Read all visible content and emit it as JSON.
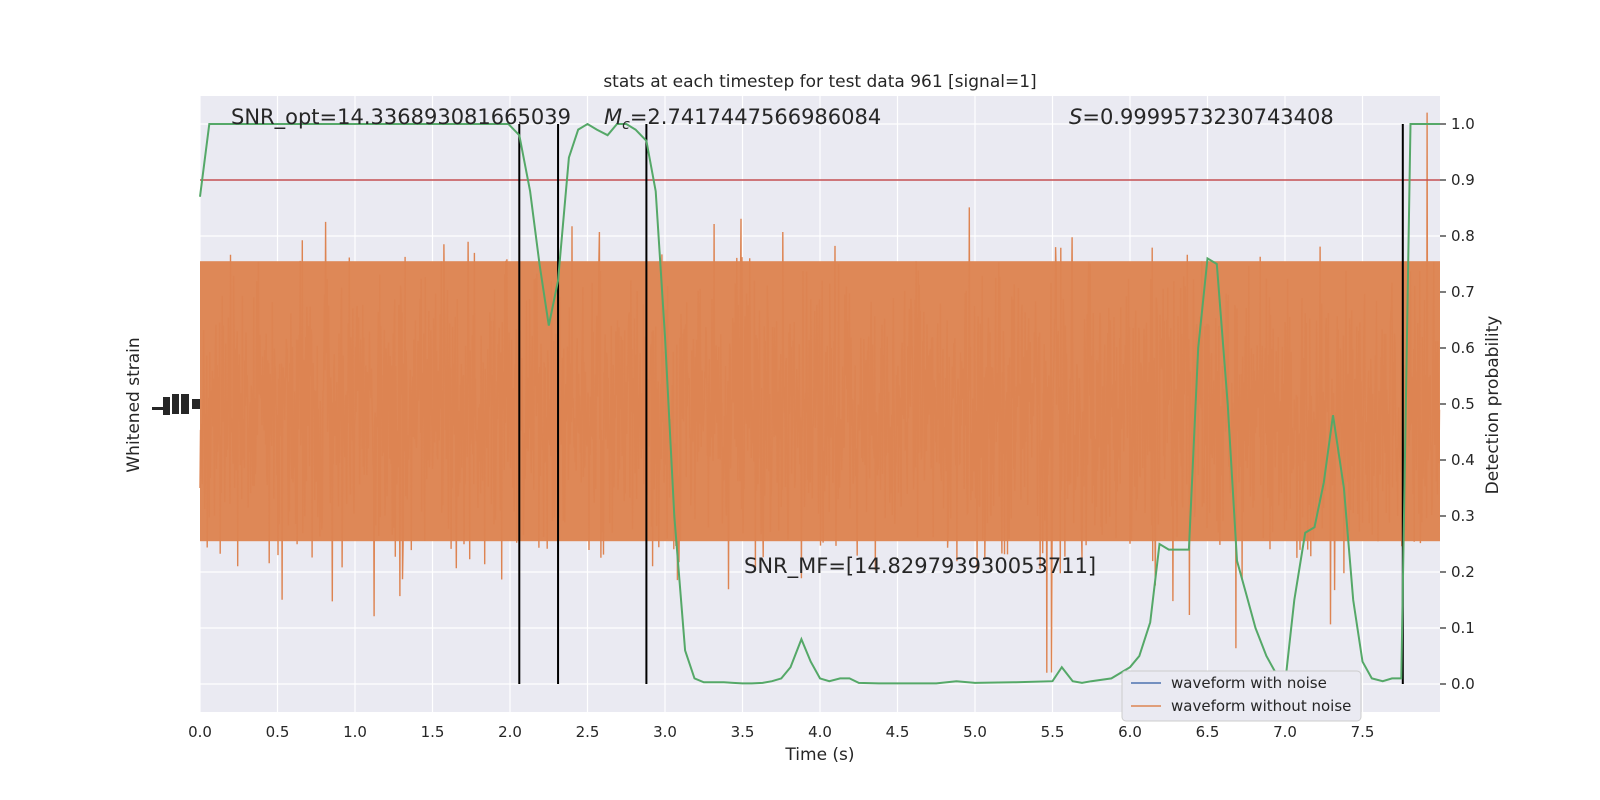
{
  "chart_data": {
    "type": "line",
    "title": "stats at each timestep for test data 961 [signal=1]",
    "xlabel": "Time (s)",
    "ylabel_left": "Whitened strain",
    "ylabel_right": "Detection probability",
    "xlim": [
      0,
      8
    ],
    "ylim_right": [
      -0.05,
      1.05
    ],
    "x_ticks": [
      0.0,
      0.5,
      1.0,
      1.5,
      2.0,
      2.5,
      3.0,
      3.5,
      4.0,
      4.5,
      5.0,
      5.5,
      6.0,
      6.5,
      7.0,
      7.5
    ],
    "x_tick_labels": [
      "0.0",
      "0.5",
      "1.0",
      "1.5",
      "2.0",
      "2.5",
      "3.0",
      "3.5",
      "4.0",
      "4.5",
      "5.0",
      "5.5",
      "6.0",
      "6.5",
      "7.0",
      "7.5"
    ],
    "y_ticks_right": [
      0.0,
      0.1,
      0.2,
      0.3,
      0.4,
      0.5,
      0.6,
      0.7,
      0.8,
      0.9,
      1.0
    ],
    "y_tick_labels_right": [
      "0.0",
      "0.1",
      "0.2",
      "0.3",
      "0.4",
      "0.5",
      "0.6",
      "0.7",
      "0.8",
      "0.9",
      "1.0"
    ],
    "grid": true,
    "legend_position": "lower-right",
    "annotations": {
      "snr_opt": "SNR_opt=14.336893081665039",
      "mc_symbol": "M",
      "mc_sub": "c",
      "mc_value": "=2.7417447566986084",
      "s_symbol": "S",
      "s_value": "=0.9999573230743408",
      "snr_mf": "SNR_MF=[14.829793930053711]"
    },
    "threshold": 0.9,
    "vertical_lines_x": [
      2.06,
      2.31,
      2.88,
      7.76
    ],
    "series": [
      {
        "name": "waveform with noise",
        "color": "#4c72b0",
        "kind": "strain",
        "values": []
      },
      {
        "name": "waveform without noise",
        "color": "#dd8452",
        "kind": "strain",
        "values": []
      },
      {
        "name": "",
        "color": "#55a868",
        "kind": "probability",
        "x": [
          0.0,
          0.06,
          0.5,
          1.0,
          1.5,
          1.99,
          2.06,
          2.13,
          2.19,
          2.25,
          2.31,
          2.38,
          2.44,
          2.5,
          2.56,
          2.63,
          2.69,
          2.75,
          2.81,
          2.88,
          2.94,
          3.0,
          3.06,
          3.13,
          3.19,
          3.25,
          3.31,
          3.38,
          3.44,
          3.5,
          3.56,
          3.63,
          3.69,
          3.75,
          3.81,
          3.88,
          3.94,
          4.0,
          4.06,
          4.13,
          4.19,
          4.25,
          4.38,
          4.5,
          4.75,
          4.88,
          5.0,
          5.25,
          5.5,
          5.56,
          5.63,
          5.69,
          5.75,
          5.88,
          6.0,
          6.06,
          6.13,
          6.19,
          6.25,
          6.38,
          6.44,
          6.5,
          6.56,
          6.63,
          6.69,
          6.75,
          6.81,
          6.88,
          6.94,
          7.0,
          7.06,
          7.13,
          7.19,
          7.25,
          7.31,
          7.38,
          7.44,
          7.5,
          7.56,
          7.63,
          7.69,
          7.75,
          7.81,
          7.88,
          7.94,
          8.0
        ],
        "values": [
          0.87,
          1.0,
          1.0,
          1.0,
          1.0,
          1.0,
          0.98,
          0.88,
          0.75,
          0.64,
          0.72,
          0.94,
          0.99,
          1.0,
          0.99,
          0.98,
          1.0,
          1.0,
          0.99,
          0.97,
          0.88,
          0.62,
          0.3,
          0.06,
          0.01,
          0.003,
          0.003,
          0.003,
          0.002,
          0.001,
          0.001,
          0.002,
          0.005,
          0.01,
          0.03,
          0.08,
          0.04,
          0.01,
          0.005,
          0.01,
          0.01,
          0.002,
          0.001,
          0.001,
          0.001,
          0.005,
          0.002,
          0.003,
          0.005,
          0.03,
          0.005,
          0.002,
          0.005,
          0.01,
          0.03,
          0.05,
          0.11,
          0.25,
          0.24,
          0.24,
          0.6,
          0.76,
          0.75,
          0.5,
          0.22,
          0.16,
          0.1,
          0.05,
          0.02,
          0.0,
          0.15,
          0.27,
          0.28,
          0.36,
          0.48,
          0.35,
          0.15,
          0.04,
          0.01,
          0.005,
          0.01,
          0.01,
          1.0,
          1.0,
          1.0,
          1.0
        ]
      }
    ]
  }
}
